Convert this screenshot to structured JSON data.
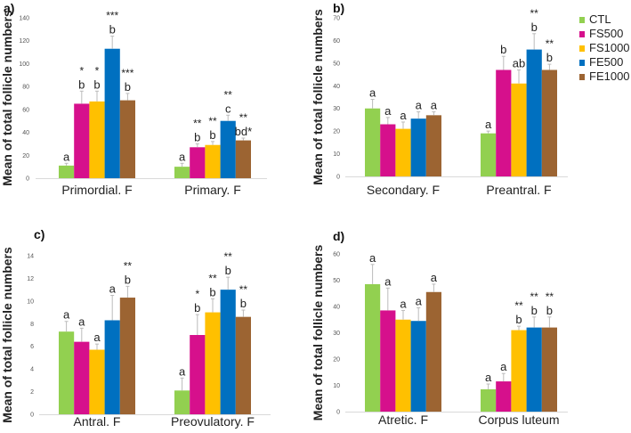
{
  "chart_data": {
    "type": "bar",
    "legend": {
      "placement": "right of panel b",
      "entries": [
        "CTL",
        "FS500",
        "FS1000",
        "FE500",
        "FE1000"
      ],
      "colors": [
        "#92d050",
        "#d6108c",
        "#ffc000",
        "#0070c0",
        "#9c6432"
      ]
    },
    "series_names": [
      "CTL",
      "FS500",
      "FS1000",
      "FE500",
      "FE1000"
    ],
    "panels": [
      {
        "label": "a)",
        "ylabel": "Mean of total follicle numbers",
        "ylim": [
          0,
          140
        ],
        "yticks": [
          0,
          20,
          40,
          60,
          80,
          100,
          120,
          140
        ],
        "categories": [
          "Primordial. F",
          "Primary. F"
        ],
        "values": [
          [
            11,
            65,
            67,
            113,
            68
          ],
          [
            10,
            27,
            29,
            50,
            33
          ]
        ],
        "error_top": [
          [
            13,
            76,
            76,
            124,
            74
          ],
          [
            13,
            30,
            32,
            55,
            35
          ]
        ],
        "letters": [
          [
            "a",
            "b",
            "b",
            "b",
            "b"
          ],
          [
            "a",
            "b",
            "b",
            "c",
            "bd*"
          ]
        ],
        "significance": [
          [
            "",
            "*",
            "*",
            "***",
            "***"
          ],
          [
            "",
            "**",
            "**",
            "**",
            "**"
          ]
        ]
      },
      {
        "label": "b)",
        "ylabel": "Mean of total follicle numbers",
        "ylim": [
          0,
          70
        ],
        "yticks": [
          0,
          10,
          20,
          30,
          40,
          50,
          60,
          70
        ],
        "categories": [
          "Secondary. F",
          "Preantral. F"
        ],
        "values": [
          [
            30,
            23,
            21,
            25.5,
            27
          ],
          [
            19,
            47,
            41,
            56,
            47
          ]
        ],
        "error_top": [
          [
            34,
            26,
            24,
            28.5,
            28.5
          ],
          [
            20,
            53,
            47,
            63,
            49.5
          ]
        ],
        "letters": [
          [
            "a",
            "a",
            "a",
            "a",
            "a"
          ],
          [
            "a",
            "b",
            "ab",
            "b",
            "b"
          ]
        ],
        "significance": [
          [
            "",
            "",
            "",
            "",
            ""
          ],
          [
            "",
            "",
            "",
            "**",
            "**"
          ]
        ]
      },
      {
        "label": "c)",
        "ylabel": "Mean of total follicle numbers",
        "ylim": [
          0,
          14
        ],
        "yticks": [
          0,
          2,
          4,
          6,
          8,
          10,
          12,
          14
        ],
        "categories": [
          "Antral. F",
          "Preovulatory. F"
        ],
        "values": [
          [
            7.3,
            6.4,
            5.7,
            8.3,
            10.3
          ],
          [
            2.1,
            7,
            9,
            11,
            8.6
          ]
        ],
        "error_top": [
          [
            8.2,
            7.6,
            6.2,
            10.5,
            11.3
          ],
          [
            3.2,
            8.8,
            10.2,
            12.1,
            9.2
          ]
        ],
        "letters": [
          [
            "a",
            "a",
            "a",
            "a",
            "b"
          ],
          [
            "a",
            "b",
            "b",
            "b",
            "b"
          ]
        ],
        "significance": [
          [
            "",
            "",
            "",
            "",
            "**"
          ],
          [
            "",
            "*",
            "**",
            "**",
            "**"
          ]
        ]
      },
      {
        "label": "d)",
        "ylabel": "Mean of total follicle numbers",
        "ylim": [
          0,
          60
        ],
        "yticks": [
          0,
          10,
          20,
          30,
          40,
          50,
          60
        ],
        "categories": [
          "Atretic. F",
          "Corpus luteum"
        ],
        "values": [
          [
            48.5,
            38.5,
            35,
            34.5,
            45.5
          ],
          [
            8.5,
            11.5,
            31,
            32,
            32
          ]
        ],
        "error_top": [
          [
            56,
            47,
            38.5,
            39.5,
            48.5
          ],
          [
            10.5,
            14.5,
            32.5,
            36,
            36
          ]
        ],
        "letters": [
          [
            "a",
            "a",
            "a",
            "a",
            "a"
          ],
          [
            "a",
            "a",
            "b",
            "b",
            "b"
          ]
        ],
        "significance": [
          [
            "",
            "",
            "",
            "",
            ""
          ],
          [
            "",
            "",
            "**",
            "**",
            "**"
          ]
        ]
      }
    ]
  }
}
